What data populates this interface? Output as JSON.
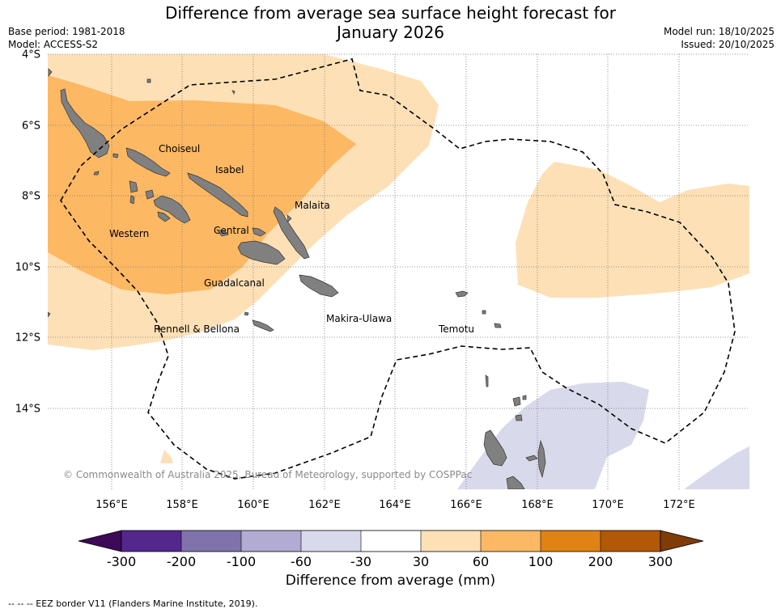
{
  "title": "Difference from average sea surface height forecast for January 2026",
  "title_line1": "Difference from average sea surface height forecast for",
  "title_line2": "January 2026",
  "base_period": "Base period: 1981-2018",
  "model": "Model: ACCESS-S2",
  "model_run": "Model run: 18/10/2025",
  "issued": "Issued: 20/10/2025",
  "lat_labels": [
    "4°S",
    "6°S",
    "8°S",
    "10°S",
    "12°S",
    "14°S"
  ],
  "lon_labels": [
    "156°E",
    "158°E",
    "160°E",
    "162°E",
    "164°E",
    "166°E",
    "168°E",
    "170°E",
    "172°E"
  ],
  "regions": {
    "choiseul": "Choiseul",
    "isabel": "Isabel",
    "malaita": "Malaita",
    "western": "Western",
    "central": "Central",
    "guadalcanal": "Guadalcanal",
    "rennell": "Rennell & Bellona",
    "makira": "Makira-Ulawa",
    "temotu": "Temotu"
  },
  "copyright": "© Commonwealth of Australia 2025, Bureau of Meteorology, supported by COSPPac",
  "colorbar": {
    "ticks": [
      "-300",
      "-200",
      "-100",
      "-60",
      "-30",
      "30",
      "60",
      "100",
      "200",
      "300"
    ],
    "colors": [
      "#3d0a57",
      "#54278f",
      "#8073ac",
      "#b2abd2",
      "#d8daeb",
      "#ffffff",
      "#fee0b6",
      "#fdb863",
      "#e08214",
      "#b35806",
      "#7f3b08"
    ],
    "title": "Difference from average (mm)"
  },
  "footnote": "--  --  -- EEZ border V11 (Flanders Marine Institute, 2019).",
  "colors": {
    "land": "#808080",
    "anomaly_30_60": "#fee0b6",
    "anomaly_60_100": "#fdb863",
    "anomaly_neg_30_60": "#d8daeb"
  }
}
